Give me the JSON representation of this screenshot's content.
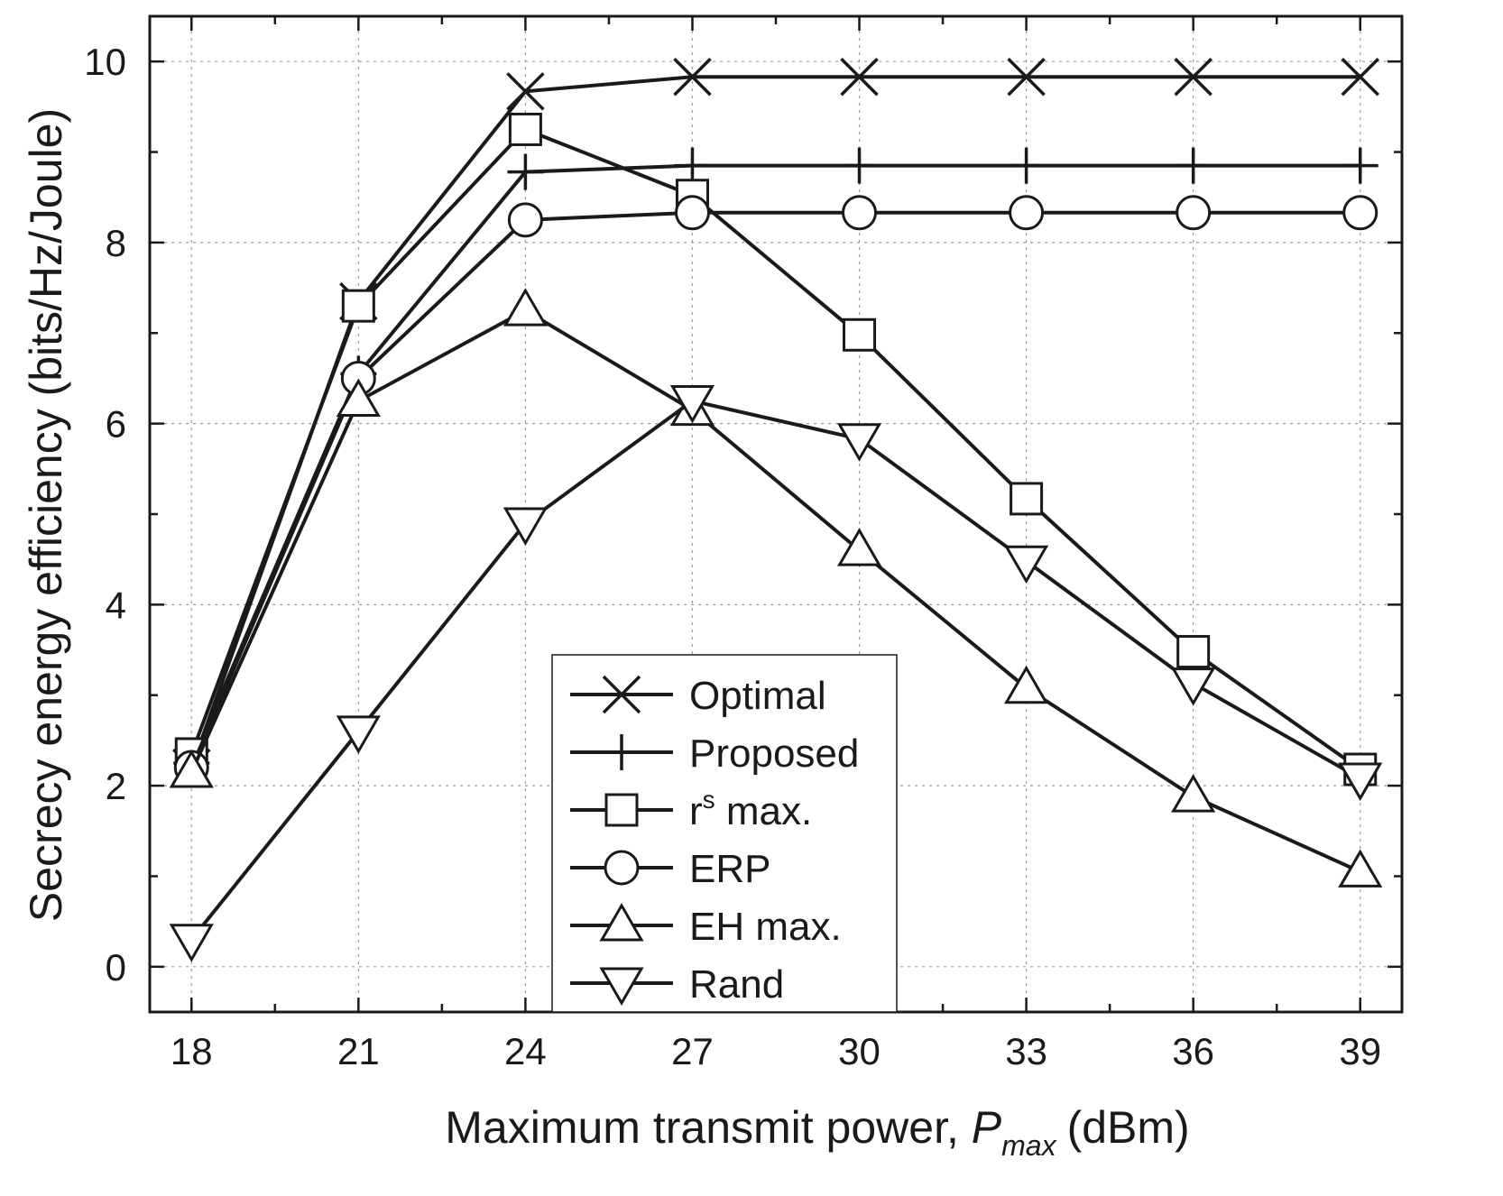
{
  "chart_data": {
    "type": "line",
    "title": "",
    "xlabel": "Maximum transmit power,",
    "xlabel_symbol": "P",
    "xlabel_subscript": "max",
    "xlabel_unit": "(dBm)",
    "ylabel": "Secrecy energy efficiency (bits/Hz/Joule)",
    "x": [
      18,
      21,
      24,
      27,
      30,
      33,
      36,
      39
    ],
    "xlim": [
      17.25,
      39.75
    ],
    "ylim": [
      -0.5,
      10.5
    ],
    "xticks": [
      18,
      21,
      24,
      27,
      30,
      33,
      36,
      39
    ],
    "xticks_minor": [
      19.5,
      22.5,
      25.5,
      28.5,
      31.5,
      34.5,
      37.5
    ],
    "yticks": [
      0,
      2,
      4,
      6,
      8,
      10
    ],
    "yticks_minor": [
      1,
      3,
      5,
      7,
      9
    ],
    "grid": true,
    "legend_position": "bottom-center",
    "series": [
      {
        "name": "Optimal",
        "marker": "x",
        "values": [
          2.2,
          7.35,
          9.67,
          9.83,
          9.83,
          9.83,
          9.83,
          9.83
        ]
      },
      {
        "name": "Proposed",
        "marker": "plus",
        "values": [
          2.25,
          6.55,
          8.78,
          8.85,
          8.85,
          8.85,
          8.85,
          8.85
        ]
      },
      {
        "name": "r",
        "name_superscript": "s",
        "name_suffix": "max.",
        "marker": "square",
        "values": [
          2.35,
          7.3,
          9.25,
          8.52,
          6.98,
          5.17,
          3.48,
          2.18
        ]
      },
      {
        "name": "ERP",
        "marker": "circle",
        "values": [
          2.2,
          6.5,
          8.25,
          8.33,
          8.33,
          8.33,
          8.33,
          8.33
        ]
      },
      {
        "name": "EH max.",
        "marker": "triangle-up",
        "values": [
          2.15,
          6.25,
          7.25,
          6.15,
          4.6,
          3.08,
          1.88,
          1.05
        ]
      },
      {
        "name": "Rand",
        "marker": "triangle-down",
        "values": [
          0.3,
          2.6,
          4.9,
          6.25,
          5.83,
          4.48,
          3.13,
          2.08
        ]
      }
    ]
  }
}
